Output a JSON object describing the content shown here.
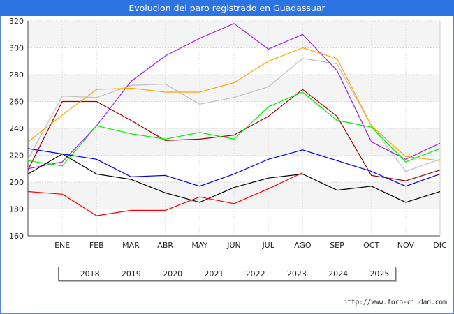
{
  "header": {
    "title": "Evolucion del paro registrado en Guadassuar"
  },
  "footer": {
    "source": "http://www.foro-ciudad.com"
  },
  "chart_data": {
    "type": "line",
    "title": "Evolucion del paro registrado en Guadassuar",
    "categories": [
      "",
      "ENE",
      "FEB",
      "MAR",
      "ABR",
      "MAY",
      "JUN",
      "JUL",
      "AGO",
      "SEP",
      "OCT",
      "NOV",
      "DIC"
    ],
    "ylim": [
      160,
      320
    ],
    "yticks": [
      160,
      180,
      200,
      220,
      240,
      260,
      280,
      300,
      320
    ],
    "grid": true,
    "legend_position": "bottom",
    "series": [
      {
        "name": "2018",
        "color": "#c0c0c0",
        "values": [
          217,
          264,
          263,
          272,
          273,
          258,
          263,
          271,
          292,
          288,
          242,
          208,
          217
        ]
      },
      {
        "name": "2019",
        "color": "#a00000",
        "values": [
          209,
          260,
          260,
          246,
          231,
          232,
          235,
          249,
          269,
          249,
          205,
          201,
          209
        ]
      },
      {
        "name": "2020",
        "color": "#a020f0",
        "values": [
          210,
          215,
          242,
          275,
          294,
          307,
          318,
          299,
          310,
          283,
          230,
          217,
          229
        ]
      },
      {
        "name": "2021",
        "color": "#ffa500",
        "values": [
          230,
          250,
          269,
          270,
          267,
          267,
          274,
          290,
          300,
          292,
          242,
          219,
          216
        ]
      },
      {
        "name": "2022",
        "color": "#00ee00",
        "values": [
          216,
          212,
          242,
          236,
          232,
          237,
          232,
          256,
          267,
          246,
          241,
          215,
          225
        ]
      },
      {
        "name": "2023",
        "color": "#0000ee",
        "values": [
          225,
          221,
          217,
          204,
          205,
          197,
          206,
          217,
          224,
          216,
          208,
          197,
          206
        ]
      },
      {
        "name": "2024",
        "color": "#000000",
        "values": [
          206,
          221,
          206,
          202,
          192,
          185,
          196,
          203,
          206,
          194,
          197,
          185,
          193
        ]
      },
      {
        "name": "2025",
        "color": "#ff0000",
        "values": [
          193,
          191,
          175,
          179,
          179,
          189,
          184,
          195,
          207,
          null,
          null,
          null,
          null
        ]
      }
    ]
  }
}
